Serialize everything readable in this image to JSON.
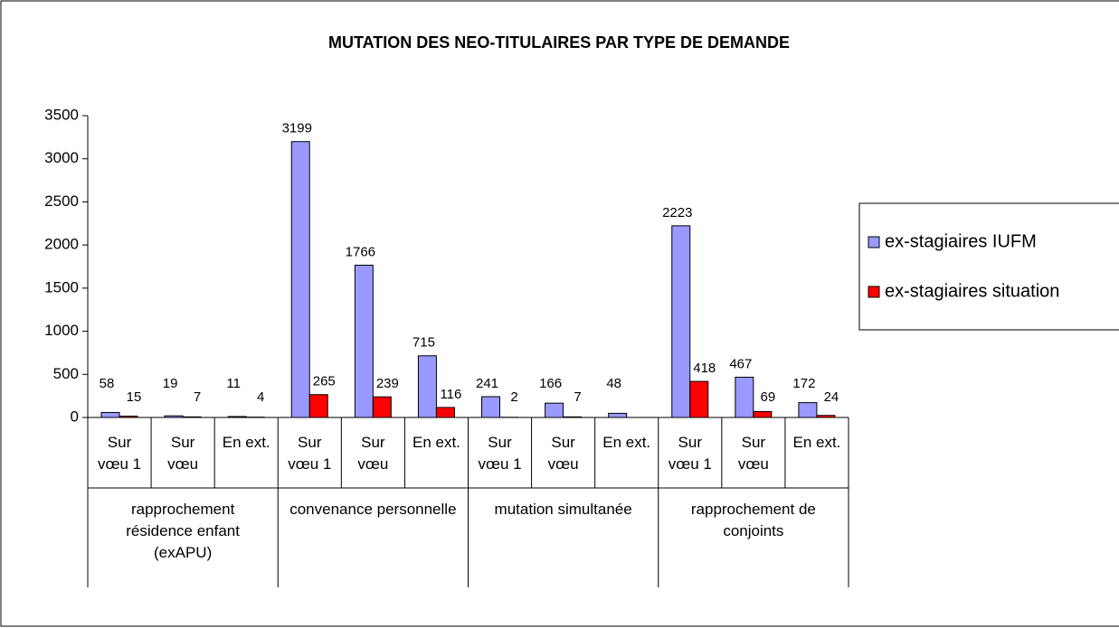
{
  "chart_data": {
    "type": "bar",
    "title": "MUTATION DES NEO-TITULAIRES PAR TYPE DE DEMANDE",
    "categories": [
      "Sur vœu 1",
      "Sur vœu",
      "En ext.",
      "Sur vœu 1",
      "Sur vœu",
      "En ext.",
      "Sur vœu 1",
      "Sur vœu",
      "En ext.",
      "Sur vœu 1",
      "Sur vœu",
      "En ext."
    ],
    "groups": [
      "rapprochement résidence enfant (exAPU)",
      "convenance personnelle",
      "mutation simultanée",
      "rapprochement de conjoints"
    ],
    "series": [
      {
        "name": "ex-stagiaires IUFM",
        "color": "#9999ff",
        "values": [
          58,
          19,
          11,
          3199,
          1766,
          715,
          241,
          166,
          48,
          2223,
          467,
          172
        ]
      },
      {
        "name": "ex-stagiaires situation",
        "color": "#ff0000",
        "values": [
          15,
          7,
          4,
          265,
          239,
          116,
          2,
          7,
          null,
          418,
          69,
          24
        ]
      }
    ],
    "ylim": [
      0,
      3500
    ],
    "yticks": [
      0,
      500,
      1000,
      1500,
      2000,
      2500,
      3000,
      3500
    ],
    "grid": false,
    "legend": "right"
  }
}
